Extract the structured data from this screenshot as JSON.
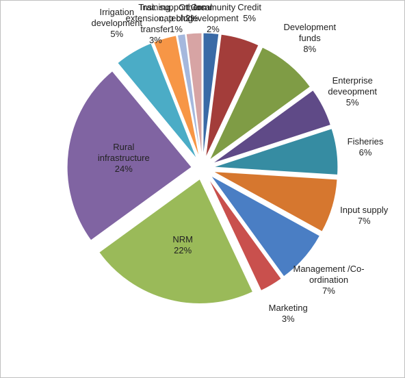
{
  "chart_data": {
    "type": "pie",
    "categories": [
      "Community development",
      "Credit",
      "Development funds",
      "Enterprise deveopment",
      "Fisheries",
      "Input supply",
      "Management /Co-ordination",
      "Marketing",
      "NRM",
      "Rural infrastructure",
      "Irrigation development",
      "Training, extension, tech transfer",
      "Inst. support, local cap bldg",
      "Others"
    ],
    "values": [
      2,
      5,
      8,
      5,
      6,
      7,
      7,
      3,
      22,
      24,
      5,
      3,
      1,
      2
    ],
    "value_labels": [
      "2%",
      "5%",
      "8%",
      "5%",
      "6%",
      "7%",
      "7%",
      "3%",
      "22%",
      "24%",
      "5%",
      "3%",
      "1%",
      "2%"
    ],
    "colors": [
      "#3a6aa6",
      "#a33d3a",
      "#7f9c45",
      "#5f4a87",
      "#368ca2",
      "#d6772f",
      "#4a7ec4",
      "#c9504d",
      "#9aba59",
      "#8064a2",
      "#4bacc6",
      "#f79646",
      "#a5b8dd",
      "#d7a4a4"
    ]
  }
}
